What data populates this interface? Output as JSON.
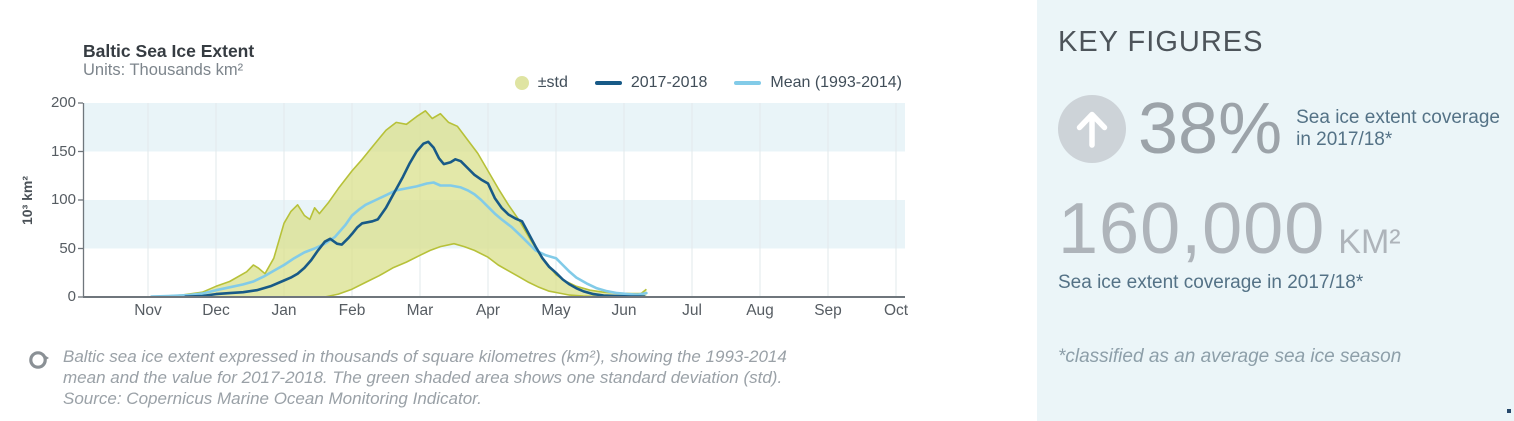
{
  "chart": {
    "title": "Baltic Sea Ice Extent",
    "subtitle": "Units: Thousands km²",
    "y_axis_title": "10³ km²",
    "legend": [
      {
        "label": "±std"
      },
      {
        "label": "2017-2018"
      },
      {
        "label": "Mean (1993-2014)"
      }
    ]
  },
  "caption": {
    "line1": "Baltic sea ice extent expressed in thousands of square kilometres (km²), showing the 1993-2014",
    "line2": "mean and the value for 2017-2018. The green shaded area shows one standard deviation (std).",
    "line3": "Source: Copernicus Marine Ocean Monitoring Indicator."
  },
  "panel": {
    "title": "KEY FIGURES",
    "stat_percent": {
      "value": "38%",
      "label_line1": "Sea ice extent coverage",
      "label_line2": "in 2017/18*"
    },
    "stat_area": {
      "value": "160,000",
      "unit": "KM²",
      "label": "Sea ice extent coverage in 2017/18*"
    },
    "footnote": "*classified as an average sea ice season"
  },
  "colors": {
    "stripe": "#e9f4f8",
    "grid": "#e2e8eb",
    "axis": "#6f767c",
    "band_legend": "#dfe4a2",
    "line_2017": "#185a87",
    "line_mean": "#82cbe8",
    "panel_bg": "#ebf5f8"
  },
  "chart_data": {
    "type": "area",
    "title": "Baltic Sea Ice Extent",
    "subtitle": "Units: Thousands km²",
    "ylabel": "10³ km²",
    "ylim": [
      0,
      200
    ],
    "yticks": [
      0,
      50,
      100,
      150,
      200
    ],
    "months": [
      "Nov",
      "Dec",
      "Jan",
      "Feb",
      "Mar",
      "Apr",
      "May",
      "Jun",
      "Jul",
      "Aug",
      "Sep",
      "Oct"
    ],
    "x_unit": "months since Nov 1",
    "stripes": [
      [
        50,
        100
      ],
      [
        150,
        200
      ]
    ],
    "series": [
      {
        "name": "±std",
        "kind": "band",
        "fill": "#d9e08c",
        "fill_opacity": 0.75,
        "stroke": "#b7c139",
        "top": [
          [
            0.1,
            0.3
          ],
          [
            0.5,
            2
          ],
          [
            0.8,
            5
          ],
          [
            1.0,
            11
          ],
          [
            1.2,
            16
          ],
          [
            1.45,
            26
          ],
          [
            1.55,
            33
          ],
          [
            1.62,
            30
          ],
          [
            1.72,
            24
          ],
          [
            1.85,
            40
          ],
          [
            2.0,
            76
          ],
          [
            2.1,
            88
          ],
          [
            2.2,
            95
          ],
          [
            2.3,
            84
          ],
          [
            2.38,
            80
          ],
          [
            2.45,
            92
          ],
          [
            2.52,
            86
          ],
          [
            2.65,
            97
          ],
          [
            2.8,
            112
          ],
          [
            3.0,
            130
          ],
          [
            3.15,
            142
          ],
          [
            3.3,
            155
          ],
          [
            3.5,
            172
          ],
          [
            3.65,
            180
          ],
          [
            3.8,
            178
          ],
          [
            3.95,
            186
          ],
          [
            4.08,
            192
          ],
          [
            4.18,
            184
          ],
          [
            4.3,
            189
          ],
          [
            4.42,
            180
          ],
          [
            4.55,
            176
          ],
          [
            4.7,
            162
          ],
          [
            4.85,
            148
          ],
          [
            5.0,
            130
          ],
          [
            5.15,
            112
          ],
          [
            5.3,
            95
          ],
          [
            5.45,
            80
          ],
          [
            5.6,
            62
          ],
          [
            5.75,
            45
          ],
          [
            5.9,
            32
          ],
          [
            6.0,
            23
          ],
          [
            6.15,
            16
          ],
          [
            6.3,
            11
          ],
          [
            6.5,
            7
          ],
          [
            6.7,
            5
          ],
          [
            6.9,
            4
          ],
          [
            7.1,
            3.5
          ],
          [
            7.25,
            3.5
          ],
          [
            7.33,
            8
          ]
        ],
        "bottom": [
          [
            0.1,
            0
          ],
          [
            1.0,
            0
          ],
          [
            2.0,
            0
          ],
          [
            2.6,
            0
          ],
          [
            2.8,
            3
          ],
          [
            3.0,
            8
          ],
          [
            3.2,
            15
          ],
          [
            3.4,
            22
          ],
          [
            3.6,
            30
          ],
          [
            3.8,
            36
          ],
          [
            4.0,
            43
          ],
          [
            4.15,
            48
          ],
          [
            4.3,
            52
          ],
          [
            4.5,
            55
          ],
          [
            4.65,
            52
          ],
          [
            4.8,
            48
          ],
          [
            5.0,
            41
          ],
          [
            5.15,
            33
          ],
          [
            5.3,
            27
          ],
          [
            5.45,
            21
          ],
          [
            5.6,
            15
          ],
          [
            5.75,
            10
          ],
          [
            5.9,
            6
          ],
          [
            6.05,
            4
          ],
          [
            6.2,
            2
          ],
          [
            6.4,
            1
          ],
          [
            6.6,
            0.5
          ],
          [
            6.9,
            0
          ],
          [
            7.33,
            0
          ]
        ]
      },
      {
        "name": "2017-2018",
        "kind": "line",
        "color": "#185a87",
        "points": [
          [
            0.55,
            0.3
          ],
          [
            0.8,
            1
          ],
          [
            1.0,
            3
          ],
          [
            1.2,
            4
          ],
          [
            1.4,
            5
          ],
          [
            1.6,
            7
          ],
          [
            1.8,
            11
          ],
          [
            2.0,
            17
          ],
          [
            2.1,
            20
          ],
          [
            2.2,
            24
          ],
          [
            2.3,
            30
          ],
          [
            2.4,
            38
          ],
          [
            2.5,
            48
          ],
          [
            2.6,
            57
          ],
          [
            2.68,
            60
          ],
          [
            2.78,
            55
          ],
          [
            2.85,
            54
          ],
          [
            2.95,
            61
          ],
          [
            3.0,
            65
          ],
          [
            3.08,
            72
          ],
          [
            3.15,
            76
          ],
          [
            3.3,
            78
          ],
          [
            3.38,
            80
          ],
          [
            3.5,
            92
          ],
          [
            3.6,
            105
          ],
          [
            3.68,
            115
          ],
          [
            3.75,
            124
          ],
          [
            3.85,
            138
          ],
          [
            3.95,
            150
          ],
          [
            4.05,
            158
          ],
          [
            4.12,
            160
          ],
          [
            4.2,
            154
          ],
          [
            4.28,
            143
          ],
          [
            4.35,
            137
          ],
          [
            4.45,
            139
          ],
          [
            4.52,
            142
          ],
          [
            4.6,
            140
          ],
          [
            4.7,
            133
          ],
          [
            4.8,
            126
          ],
          [
            4.9,
            121
          ],
          [
            5.0,
            117
          ],
          [
            5.1,
            102
          ],
          [
            5.2,
            92
          ],
          [
            5.3,
            85
          ],
          [
            5.4,
            81
          ],
          [
            5.5,
            78
          ],
          [
            5.6,
            65
          ],
          [
            5.7,
            52
          ],
          [
            5.8,
            40
          ],
          [
            5.9,
            31
          ],
          [
            6.0,
            25
          ],
          [
            6.1,
            18
          ],
          [
            6.2,
            13
          ],
          [
            6.3,
            9
          ],
          [
            6.4,
            6
          ],
          [
            6.55,
            3
          ],
          [
            6.7,
            1.5
          ],
          [
            6.9,
            1
          ],
          [
            7.1,
            0.5
          ],
          [
            7.3,
            0.5
          ]
        ]
      },
      {
        "name": "Mean (1993-2014)",
        "kind": "line",
        "color": "#82cbe8",
        "points": [
          [
            0.05,
            0.5
          ],
          [
            0.3,
            1
          ],
          [
            0.6,
            2
          ],
          [
            0.8,
            3.5
          ],
          [
            1.0,
            7
          ],
          [
            1.2,
            10
          ],
          [
            1.4,
            13
          ],
          [
            1.55,
            16
          ],
          [
            1.7,
            21
          ],
          [
            1.85,
            27
          ],
          [
            2.0,
            33
          ],
          [
            2.15,
            40
          ],
          [
            2.3,
            46
          ],
          [
            2.45,
            50
          ],
          [
            2.6,
            55
          ],
          [
            2.75,
            62
          ],
          [
            2.9,
            74
          ],
          [
            3.0,
            84
          ],
          [
            3.1,
            90
          ],
          [
            3.2,
            95
          ],
          [
            3.35,
            100
          ],
          [
            3.5,
            105
          ],
          [
            3.65,
            110
          ],
          [
            3.8,
            112
          ],
          [
            3.95,
            114
          ],
          [
            4.1,
            117
          ],
          [
            4.2,
            118
          ],
          [
            4.3,
            115
          ],
          [
            4.45,
            115
          ],
          [
            4.6,
            113
          ],
          [
            4.7,
            110
          ],
          [
            4.8,
            106
          ],
          [
            4.9,
            100
          ],
          [
            5.0,
            93
          ],
          [
            5.1,
            86
          ],
          [
            5.2,
            80
          ],
          [
            5.35,
            72
          ],
          [
            5.5,
            62
          ],
          [
            5.6,
            55
          ],
          [
            5.7,
            48
          ],
          [
            5.85,
            43
          ],
          [
            6.0,
            40
          ],
          [
            6.1,
            33
          ],
          [
            6.2,
            26
          ],
          [
            6.3,
            20
          ],
          [
            6.45,
            14
          ],
          [
            6.6,
            9
          ],
          [
            6.75,
            6
          ],
          [
            6.9,
            4
          ],
          [
            7.05,
            3
          ],
          [
            7.2,
            2.5
          ],
          [
            7.33,
            4
          ]
        ]
      }
    ],
    "grid": "vertical monthly gridlines; horizontal shaded stripes at 50-100 and 150-200",
    "legend_position": "top-right"
  }
}
